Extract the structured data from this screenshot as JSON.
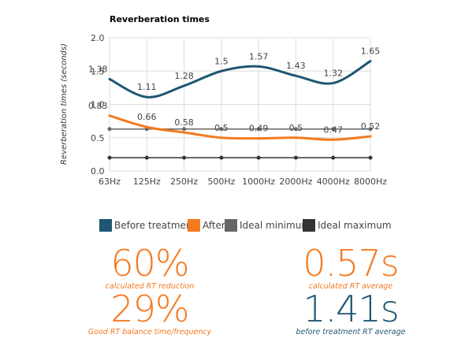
{
  "chart_data": {
    "type": "line",
    "title": "Reverberation times",
    "xlabel": "",
    "ylabel": "Reverberation times (seconds)",
    "ylim": [
      0,
      2.0
    ],
    "yticks": [
      "0.0",
      "0.5",
      "1.0",
      "1.5",
      "2.0"
    ],
    "categories": [
      "63Hz",
      "125Hz",
      "250Hz",
      "500Hz",
      "1000Hz",
      "2000Hz",
      "4000Hz",
      "8000Hz"
    ],
    "grid": true,
    "legend_position": "bottom",
    "series": [
      {
        "name": "Before treatment",
        "color": "#1f5673",
        "values": [
          1.38,
          1.11,
          1.28,
          1.5,
          1.57,
          1.43,
          1.32,
          1.65
        ],
        "labels": [
          "1.38",
          "1.11",
          "1.28",
          "1.5",
          "1.57",
          "1.43",
          "1.32",
          "1.65"
        ]
      },
      {
        "name": "After",
        "color": "#f47a20",
        "values": [
          0.83,
          0.66,
          0.58,
          0.5,
          0.49,
          0.5,
          0.47,
          0.52
        ],
        "labels": [
          "0.83",
          "0.66",
          "0.58",
          "0.5",
          "0.49",
          "0.5",
          "0.47",
          "0.52"
        ]
      },
      {
        "name": "Ideal minimum",
        "color": "#666666",
        "values": [
          0.63,
          0.63,
          0.63,
          0.63,
          0.63,
          0.63,
          0.63,
          0.63
        ]
      },
      {
        "name": "Ideal maximum",
        "color": "#333333",
        "values": [
          0.2,
          0.2,
          0.2,
          0.2,
          0.2,
          0.2,
          0.2,
          0.2
        ]
      }
    ]
  },
  "stats": [
    {
      "value": "60%",
      "caption": "calculated RT reduction",
      "color": "#f47a20"
    },
    {
      "value": "0.57s",
      "caption": "calculated RT average",
      "color": "#f47a20"
    },
    {
      "value": "29%",
      "caption": "Good RT balance time/frequency",
      "color": "#f47a20"
    },
    {
      "value": "1.41s",
      "caption": "before treatment RT average",
      "color": "#1f5673"
    }
  ]
}
